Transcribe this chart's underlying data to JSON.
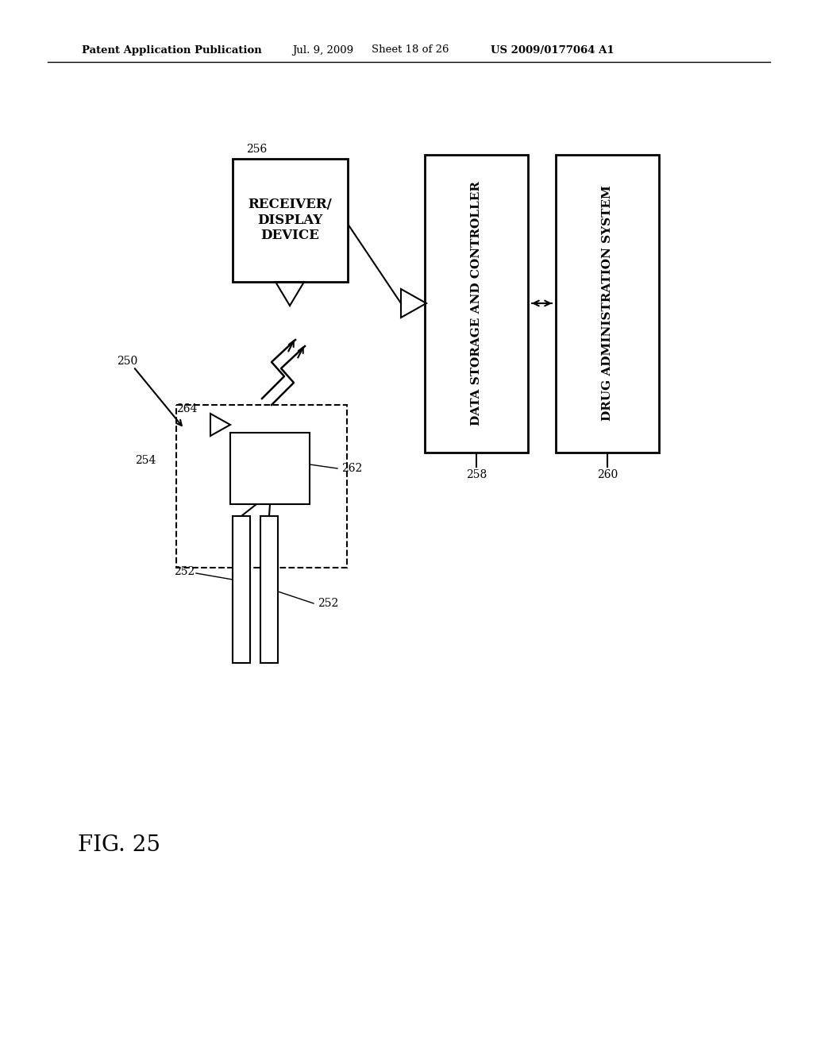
{
  "bg_color": "#ffffff",
  "header_left": "Patent Application Publication",
  "header_mid1": "Jul. 9, 2009",
  "header_mid2": "Sheet 18 of 26",
  "header_right": "US 2009/0177064 A1",
  "fig_label": "FIG. 25",
  "label_250": "250",
  "label_252a": "252",
  "label_252b": "252",
  "label_254": "254",
  "label_256": "256",
  "label_258": "258",
  "label_260": "260",
  "label_262": "262",
  "label_264": "264",
  "receiver_text": "RECEIVER/\nDISPLAY\nDEVICE",
  "data_storage_text": "DATA STORAGE AND CONTROLLER",
  "drug_admin_text": "DRUG ADMINISTRATION SYSTEM"
}
